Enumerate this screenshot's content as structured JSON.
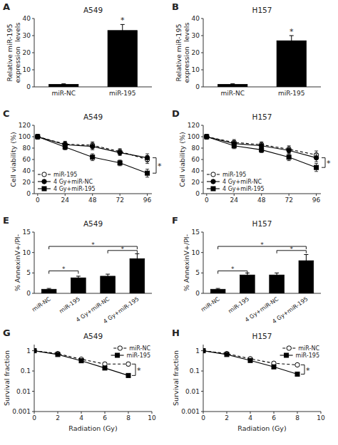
{
  "chart_data": [
    {
      "type": "bar",
      "label": "A",
      "title": "A549",
      "categories": [
        "miR-NC",
        "miR-195"
      ],
      "values": [
        1.5,
        33.0
      ],
      "errors": [
        0.3,
        3.5
      ],
      "color": "black",
      "ylabel": "Relative miR-195\nexpression  levels",
      "ylim": [
        0,
        40
      ],
      "yticks": [
        0,
        10,
        20,
        30,
        40
      ],
      "grid": false,
      "annotations": [
        {
          "text": "*",
          "category": "miR-195"
        }
      ]
    },
    {
      "type": "bar",
      "label": "B",
      "title": "H157",
      "categories": [
        "miR-NC",
        "miR-195"
      ],
      "values": [
        1.5,
        27.0
      ],
      "errors": [
        0.3,
        3.0
      ],
      "color": "black",
      "ylabel": "Relative miR-195\nexpression  levels",
      "ylim": [
        0,
        40
      ],
      "yticks": [
        0,
        10,
        20,
        30,
        40
      ],
      "grid": false,
      "annotations": [
        {
          "text": "*",
          "category": "miR-195"
        }
      ]
    },
    {
      "type": "line",
      "label": "C",
      "title": "A549",
      "ylabel": "Cell viability (%)",
      "x": [
        0,
        24,
        48,
        72,
        96
      ],
      "xlim": [
        -3,
        100
      ],
      "xticks": [
        0,
        24,
        48,
        72,
        96
      ],
      "ylim": [
        0,
        120
      ],
      "yticks": [
        0,
        20,
        40,
        60,
        80,
        100,
        120
      ],
      "grid": false,
      "legend": "lower left",
      "series": [
        {
          "name": "miR-195",
          "color": "black",
          "marker": "open-circle",
          "line_style": "dashed",
          "values": [
            100,
            87,
            85,
            74,
            60
          ],
          "errors": [
            4,
            5,
            6,
            5,
            7
          ]
        },
        {
          "name": "4 Gy+miR-NC",
          "color": "black",
          "marker": "filled-circle",
          "line_style": "solid",
          "values": [
            100,
            86,
            83,
            72,
            63
          ],
          "errors": [
            4,
            5,
            6,
            5,
            7
          ]
        },
        {
          "name": "4 Gy+miR-195",
          "color": "black",
          "marker": "filled-square",
          "line_style": "solid",
          "values": [
            100,
            82,
            64,
            54,
            36
          ],
          "errors": [
            4,
            5,
            6,
            5,
            7
          ]
        }
      ],
      "annotations": [
        {
          "text": "*",
          "y1": 63,
          "y2": 36
        }
      ]
    },
    {
      "type": "line",
      "label": "D",
      "title": "H157",
      "ylabel": "Cell viability (%)",
      "x": [
        0,
        24,
        48,
        72,
        96
      ],
      "xlim": [
        -3,
        100
      ],
      "xticks": [
        0,
        24,
        48,
        72,
        96
      ],
      "ylim": [
        0,
        120
      ],
      "yticks": [
        0,
        20,
        40,
        60,
        80,
        100,
        120
      ],
      "grid": false,
      "legend": "lower left",
      "series": [
        {
          "name": "miR-195",
          "color": "black",
          "marker": "open-circle",
          "line_style": "dashed",
          "values": [
            100,
            90,
            86,
            78,
            68
          ],
          "errors": [
            4,
            5,
            5,
            6,
            7
          ]
        },
        {
          "name": "4 Gy+miR-NC",
          "color": "black",
          "marker": "filled-circle",
          "line_style": "solid",
          "values": [
            100,
            88,
            84,
            76,
            63
          ],
          "errors": [
            4,
            5,
            5,
            6,
            7
          ]
        },
        {
          "name": "4 Gy+miR-195",
          "color": "black",
          "marker": "filled-square",
          "line_style": "solid",
          "values": [
            100,
            84,
            77,
            64,
            46
          ],
          "errors": [
            4,
            5,
            5,
            6,
            7
          ]
        }
      ],
      "annotations": [
        {
          "text": "*",
          "y1": 63,
          "y2": 46
        }
      ]
    },
    {
      "type": "bar",
      "label": "E",
      "title": "A549",
      "categories": [
        "miR-NC",
        "miR-195",
        "4 Gy+miR-NC",
        "4 Gy+miR-195"
      ],
      "values": [
        1.0,
        3.8,
        4.2,
        8.5
      ],
      "errors": [
        0.2,
        0.4,
        0.5,
        1.2
      ],
      "color": "black",
      "ylabel": "% AnnexinV+/PI-",
      "ylim": [
        0,
        15
      ],
      "yticks": [
        0,
        5,
        10,
        15
      ],
      "grid": false,
      "annotations": [
        {
          "text": "*",
          "from": "miR-NC",
          "to": "miR-195",
          "y": 5.5
        },
        {
          "text": "*",
          "from": "miR-NC",
          "to": "4 Gy+miR-195",
          "y": 11.5
        },
        {
          "text": "*",
          "from": "4 Gy+miR-NC",
          "to": "4 Gy+miR-195",
          "y": 10.5
        }
      ]
    },
    {
      "type": "bar",
      "label": "F",
      "title": "H157",
      "categories": [
        "miR-NC",
        "miR-195",
        "4 Gy+miR-NC",
        "4 Gy+miR-195"
      ],
      "values": [
        1.0,
        4.5,
        4.5,
        8.0
      ],
      "errors": [
        0.2,
        0.5,
        0.5,
        1.5
      ],
      "color": "black",
      "ylabel": "% AnnexinV+/PI-",
      "ylim": [
        0,
        15
      ],
      "yticks": [
        0,
        5,
        10,
        15
      ],
      "grid": false,
      "annotations": [
        {
          "text": "*",
          "from": "miR-NC",
          "to": "miR-195",
          "y": 5.5
        },
        {
          "text": "*",
          "from": "miR-NC",
          "to": "4 Gy+miR-195",
          "y": 11.5
        },
        {
          "text": "*",
          "from": "4 Gy+miR-NC",
          "to": "4 Gy+miR-195",
          "y": 10.5
        }
      ]
    },
    {
      "type": "line",
      "label": "G",
      "title": "A549",
      "xlabel": "Radiation (Gy)",
      "ylabel": "Survival fraction",
      "log": "y",
      "x": [
        0,
        2,
        4,
        6,
        8
      ],
      "xlim": [
        0,
        10
      ],
      "xticks": [
        0,
        2,
        4,
        6,
        8,
        10
      ],
      "ylim": [
        0.001,
        2.0
      ],
      "yticks": [
        0.001,
        0.01,
        0.1,
        1
      ],
      "grid": false,
      "legend": "upper right",
      "series": [
        {
          "name": "miR-NC",
          "color": "black",
          "marker": "open-circle",
          "line_style": "dashed",
          "values": [
            1.0,
            0.72,
            0.38,
            0.22,
            0.22
          ],
          "errors": [
            0.04,
            0.04,
            0.03,
            0.04,
            0.04
          ]
        },
        {
          "name": "miR-195",
          "color": "black",
          "marker": "filled-square",
          "line_style": "solid",
          "values": [
            1.0,
            0.65,
            0.32,
            0.14,
            0.06
          ],
          "errors": [
            0.04,
            0.04,
            0.03,
            0.02,
            0.01
          ]
        }
      ],
      "annotations": [
        {
          "text": "*",
          "x": 8,
          "y1": 0.22,
          "y2": 0.06
        }
      ]
    },
    {
      "type": "line",
      "label": "H",
      "title": "H157",
      "xlabel": "Radiation (Gy)",
      "ylabel": "Survival fraction",
      "log": "y",
      "x": [
        0,
        2,
        4,
        6,
        8
      ],
      "xlim": [
        0,
        10
      ],
      "xticks": [
        0,
        2,
        4,
        6,
        8,
        10
      ],
      "ylim": [
        0.001,
        2.0
      ],
      "yticks": [
        0.001,
        0.01,
        0.1,
        1
      ],
      "grid": false,
      "legend": "upper right",
      "series": [
        {
          "name": "miR-NC",
          "color": "black",
          "marker": "open-circle",
          "line_style": "dashed",
          "values": [
            1.0,
            0.72,
            0.4,
            0.24,
            0.2
          ],
          "errors": [
            0.04,
            0.04,
            0.03,
            0.04,
            0.03
          ]
        },
        {
          "name": "miR-195",
          "color": "black",
          "marker": "filled-square",
          "line_style": "solid",
          "values": [
            1.0,
            0.65,
            0.33,
            0.16,
            0.07
          ],
          "errors": [
            0.04,
            0.04,
            0.03,
            0.02,
            0.01
          ]
        }
      ],
      "annotations": [
        {
          "text": "*",
          "x": 8,
          "y1": 0.2,
          "y2": 0.07
        }
      ]
    }
  ]
}
